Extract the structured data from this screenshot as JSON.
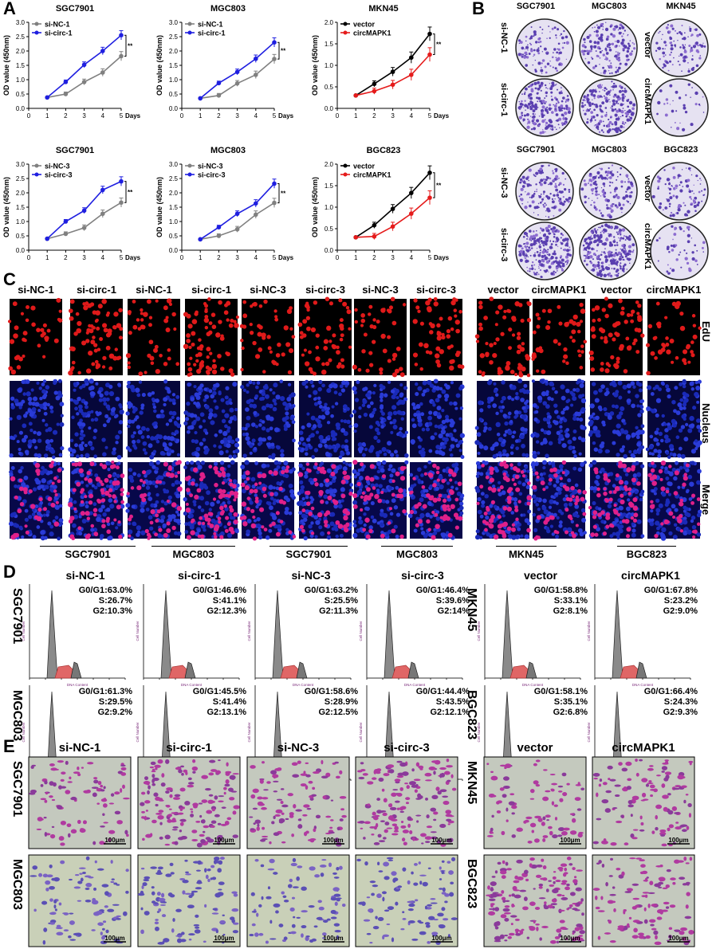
{
  "panels": {
    "A": "A",
    "B": "B",
    "C": "C",
    "D": "D",
    "E": "E"
  },
  "days_label": "Days",
  "significance": "**",
  "panelA": [
    {
      "title": "SGC7901",
      "ylabel": "OD value (450nm)",
      "legend": [
        "si-NC-1",
        "si-circ-1"
      ],
      "colors": [
        "#808080",
        "#1f1fe0"
      ]
    },
    {
      "title": "MGC803",
      "ylabel": "OD value (450nm)",
      "legend": [
        "si-NC-1",
        "si-circ-1"
      ],
      "colors": [
        "#808080",
        "#1f1fe0"
      ]
    },
    {
      "title": "MKN45",
      "ylabel": "OD value (450nm)",
      "legend": [
        "vector",
        "circMAPK1"
      ],
      "colors": [
        "#000000",
        "#e51b1b"
      ]
    },
    {
      "title": "SGC7901",
      "ylabel": "OD value (450nm)",
      "legend": [
        "si-NC-3",
        "si-circ-3"
      ],
      "colors": [
        "#808080",
        "#1f1fe0"
      ]
    },
    {
      "title": "MGC803",
      "ylabel": "OD value (450nm)",
      "legend": [
        "si-NC-3",
        "si-circ-3"
      ],
      "colors": [
        "#808080",
        "#1f1fe0"
      ]
    },
    {
      "title": "BGC823",
      "ylabel": "OD value (450nm)",
      "legend": [
        "vector",
        "circMAPK1"
      ],
      "colors": [
        "#000000",
        "#e51b1b"
      ]
    }
  ],
  "chart_data": [
    {
      "type": "line",
      "title": "SGC7901",
      "xlabel": "Days",
      "ylabel": "OD value (450nm)",
      "x": [
        1,
        2,
        3,
        4,
        5
      ],
      "xlim": [
        0,
        5
      ],
      "ylim": [
        0,
        3.0
      ],
      "yticks": [
        0,
        0.5,
        1.0,
        1.5,
        2.0,
        2.5,
        3.0
      ],
      "series": [
        {
          "name": "si-NC-1",
          "values": [
            0.38,
            0.5,
            0.92,
            1.25,
            1.82
          ]
        },
        {
          "name": "si-circ-1",
          "values": [
            0.38,
            0.92,
            1.52,
            2.0,
            2.55
          ]
        }
      ]
    },
    {
      "type": "line",
      "title": "MGC803",
      "xlabel": "Days",
      "ylabel": "OD value (450nm)",
      "x": [
        1,
        2,
        3,
        4,
        5
      ],
      "xlim": [
        0,
        5
      ],
      "ylim": [
        0,
        3.0
      ],
      "yticks": [
        0,
        0.5,
        1.0,
        1.5,
        2.0,
        2.5,
        3.0
      ],
      "series": [
        {
          "name": "si-NC-1",
          "values": [
            0.35,
            0.45,
            0.87,
            1.17,
            1.72
          ]
        },
        {
          "name": "si-circ-1",
          "values": [
            0.35,
            0.88,
            1.27,
            1.73,
            2.3
          ]
        }
      ]
    },
    {
      "type": "line",
      "title": "MKN45",
      "xlabel": "Days",
      "ylabel": "OD value (450nm)",
      "x": [
        1,
        2,
        3,
        4,
        5
      ],
      "xlim": [
        0,
        5
      ],
      "ylim": [
        0,
        2.0
      ],
      "yticks": [
        0,
        0.5,
        1.0,
        1.5,
        2.0
      ],
      "series": [
        {
          "name": "vector",
          "values": [
            0.3,
            0.57,
            0.85,
            1.18,
            1.73
          ]
        },
        {
          "name": "circMAPK1",
          "values": [
            0.3,
            0.4,
            0.55,
            0.78,
            1.25
          ]
        }
      ]
    },
    {
      "type": "line",
      "title": "SGC7901",
      "xlabel": "Days",
      "ylabel": "OD value (450nm)",
      "x": [
        1,
        2,
        3,
        4,
        5
      ],
      "xlim": [
        0,
        5
      ],
      "ylim": [
        0,
        3.0
      ],
      "yticks": [
        0,
        0.5,
        1.0,
        1.5,
        2.0,
        2.5,
        3.0
      ],
      "series": [
        {
          "name": "si-NC-3",
          "values": [
            0.4,
            0.57,
            0.78,
            1.27,
            1.66
          ]
        },
        {
          "name": "si-circ-3",
          "values": [
            0.4,
            1.0,
            1.38,
            2.1,
            2.4
          ]
        }
      ]
    },
    {
      "type": "line",
      "title": "MGC803",
      "xlabel": "Days",
      "ylabel": "OD value (450nm)",
      "x": [
        1,
        2,
        3,
        4,
        5
      ],
      "xlim": [
        0,
        5
      ],
      "ylim": [
        0,
        3.0
      ],
      "yticks": [
        0,
        0.5,
        1.0,
        1.5,
        2.0,
        2.5,
        3.0
      ],
      "series": [
        {
          "name": "si-NC-3",
          "values": [
            0.38,
            0.5,
            0.73,
            1.24,
            1.65
          ]
        },
        {
          "name": "si-circ-3",
          "values": [
            0.38,
            0.8,
            1.27,
            1.63,
            2.32
          ]
        }
      ]
    },
    {
      "type": "line",
      "title": "BGC823",
      "xlabel": "Days",
      "ylabel": "OD value (450nm)",
      "x": [
        1,
        2,
        3,
        4,
        5
      ],
      "xlim": [
        0,
        5
      ],
      "ylim": [
        0,
        2.0
      ],
      "yticks": [
        0,
        0.5,
        1.0,
        1.5,
        2.0
      ],
      "series": [
        {
          "name": "vector",
          "values": [
            0.3,
            0.58,
            0.96,
            1.33,
            1.8
          ]
        },
        {
          "name": "circMAPK1",
          "values": [
            0.3,
            0.32,
            0.55,
            0.85,
            1.22
          ]
        }
      ]
    }
  ],
  "panelB": {
    "top_cols": [
      "SGC7901",
      "MGC803",
      "MKN45"
    ],
    "top_rows": [
      "si-NC-1",
      "si-circ-1"
    ],
    "top_right_rows": [
      "vector",
      "circMAPK1"
    ],
    "bottom_cols": [
      "SGC7901",
      "MGC803",
      "BGC823"
    ],
    "bottom_rows": [
      "si-NC-3",
      "si-circ-3"
    ],
    "bottom_right_rows": [
      "vector",
      "circMAPK1"
    ]
  },
  "panelC": {
    "left_headers": [
      "si-NC-1",
      "si-circ-1",
      "si-NC-1",
      "si-circ-1",
      "si-NC-3",
      "si-circ-3",
      "si-NC-3",
      "si-circ-3"
    ],
    "right_headers": [
      "vector",
      "circMAPK1",
      "vector",
      "circMAPK1"
    ],
    "rows": [
      "EdU",
      "Nucleus",
      "Merge"
    ],
    "left_groups": [
      "SGC7901",
      "MGC803",
      "SGC7901",
      "MGC803"
    ],
    "right_groups": [
      "MKN45",
      "BGC823"
    ],
    "scale": "100μm"
  },
  "panelD": {
    "col_titles": [
      "si-NC-1",
      "si-circ-1",
      "si-NC-3",
      "si-circ-3",
      "vector",
      "circMAPK1"
    ],
    "row_labels_left": [
      "SGC7901",
      "MGC803"
    ],
    "row_labels_right": [
      "MKN45",
      "BGC823"
    ],
    "stats": [
      [
        [
          "G0/G1:63.0%",
          "S:26.7%",
          "G2:10.3%"
        ],
        [
          "G0/G1:46.6%",
          "S:41.1%",
          "G2:12.3%"
        ],
        [
          "G0/G1:63.2%",
          "S:25.5%",
          "G2:11.3%"
        ],
        [
          "G0/G1:46.4%",
          "S:39.6%",
          "G2:14%"
        ],
        [
          "G0/G1:58.8%",
          "S:33.1%",
          "G2:8.1%"
        ],
        [
          "G0/G1:67.8%",
          "S:23.2%",
          "G2:9.0%"
        ]
      ],
      [
        [
          "G0/G1:61.3%",
          "S:29.5%",
          "G2:9.2%"
        ],
        [
          "G0/G1:45.5%",
          "S:41.4%",
          "G2:13.1%"
        ],
        [
          "G0/G1:58.6%",
          "S:28.9%",
          "G2:12.5%"
        ],
        [
          "G0/G1:44.4%",
          "S:43.5%",
          "G2:12.1%"
        ],
        [
          "G0/G1:58.1%",
          "S:35.1%",
          "G2:6.8%"
        ],
        [
          "G0/G1:66.4%",
          "S:24.3%",
          "G2:9.3%"
        ]
      ]
    ],
    "xaxis": "DNA Content",
    "yaxis": "Cell Number"
  },
  "panelE": {
    "col_titles": [
      "si-NC-1",
      "si-circ-1",
      "si-NC-3",
      "si-circ-3",
      "vector",
      "circMAPK1"
    ],
    "row_labels_left": [
      "SGC7901",
      "MGC803"
    ],
    "row_labels_right": [
      "MKN45",
      "BGC823"
    ],
    "scale": "100μm"
  }
}
